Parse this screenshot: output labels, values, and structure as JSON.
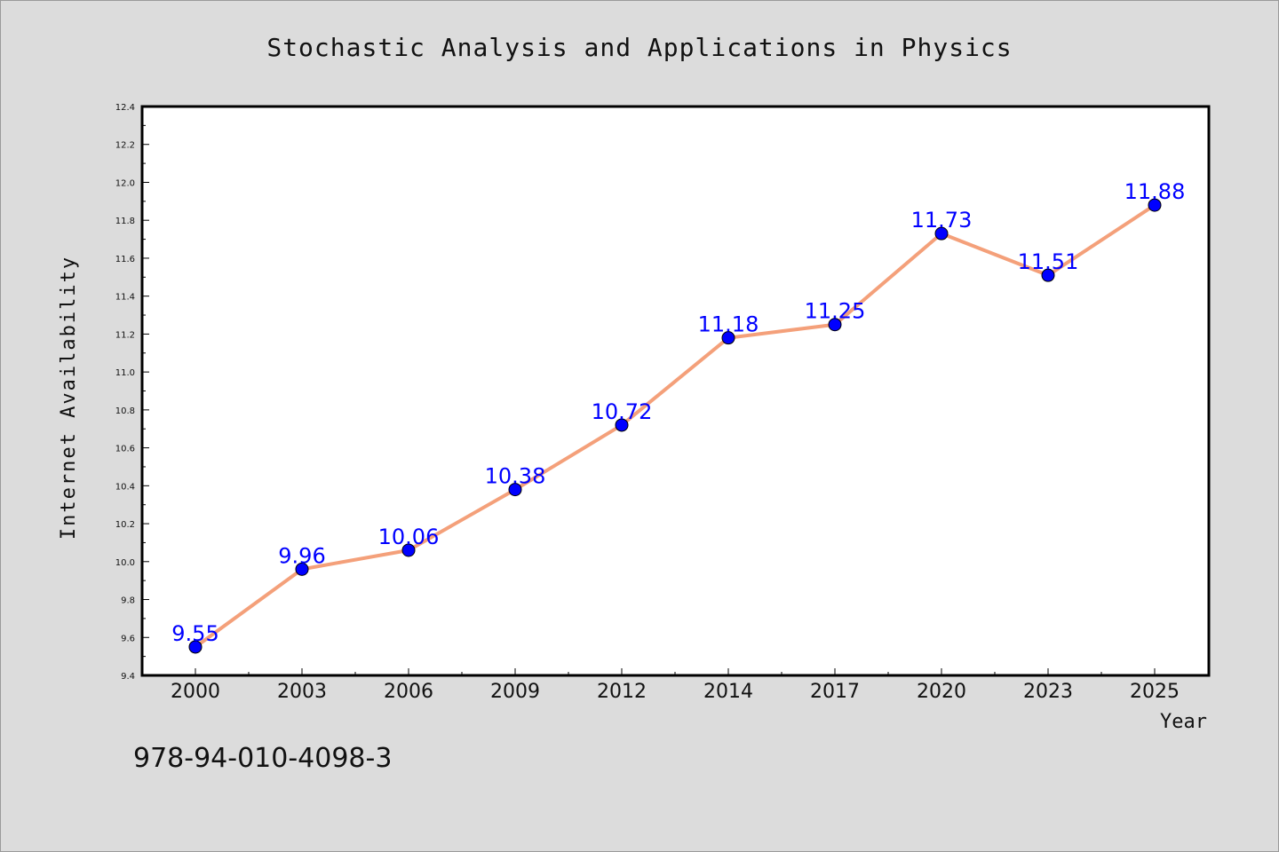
{
  "chart_data": {
    "type": "line",
    "title": "Stochastic Analysis and Applications in Physics",
    "xlabel": "Year",
    "ylabel": "Internet Availability",
    "categories": [
      "2000",
      "2003",
      "2006",
      "2009",
      "2012",
      "2014",
      "2017",
      "2020",
      "2023",
      "2025"
    ],
    "series": [
      {
        "values": [
          9.55,
          9.96,
          10.06,
          10.38,
          10.72,
          11.18,
          11.25,
          11.73,
          11.51,
          11.88
        ],
        "line_color": "#f4a07a",
        "marker_color": "#0000ff"
      }
    ],
    "data_labels": [
      "9.55",
      "9.96",
      "10.06",
      "10.38",
      "10.72",
      "11.18",
      "11.25",
      "11.73",
      "11.51",
      "11.88"
    ],
    "ylim": [
      9.4,
      12.4
    ],
    "yticks": [
      "9.4",
      "9.6",
      "9.8",
      "10.0",
      "10.2",
      "10.4",
      "10.6",
      "10.8",
      "11.0",
      "11.2",
      "11.4",
      "11.6",
      "11.8",
      "12.0",
      "12.2",
      "12.4"
    ],
    "grid": false,
    "legend": "none"
  },
  "footer": {
    "isbn": "978-94-010-4098-3"
  }
}
